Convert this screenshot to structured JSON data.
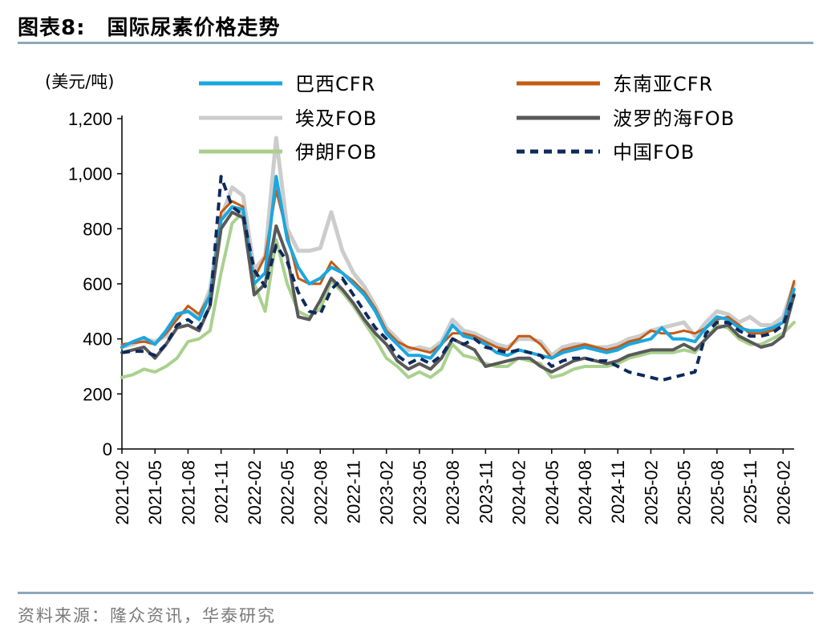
{
  "title": "图表8:　国际尿素价格走势",
  "source": "资料来源：隆众资讯，华泰研究",
  "chart_data": {
    "type": "line",
    "ylabel": "(美元/吨)",
    "ylim": [
      0,
      1200
    ],
    "yticks": [
      0,
      200,
      400,
      600,
      800,
      1000,
      1200
    ],
    "ytick_labels": [
      "0",
      "200",
      "400",
      "600",
      "800",
      "1,000",
      "1,200"
    ],
    "x": [
      "2021-02",
      "2021-03",
      "2021-04",
      "2021-05",
      "2021-06",
      "2021-07",
      "2021-08",
      "2021-09",
      "2021-10",
      "2021-11",
      "2021-12",
      "2022-01",
      "2022-02",
      "2022-03",
      "2022-04",
      "2022-05",
      "2022-06",
      "2022-07",
      "2022-08",
      "2022-09",
      "2022-10",
      "2022-11",
      "2022-12",
      "2023-01",
      "2023-02",
      "2023-03",
      "2023-04",
      "2023-05",
      "2023-06",
      "2023-07",
      "2023-08",
      "2023-09",
      "2023-10",
      "2023-11",
      "2023-12",
      "2024-01",
      "2024-02",
      "2024-03",
      "2024-04",
      "2024-05",
      "2024-06",
      "2024-07",
      "2024-08",
      "2024-09",
      "2024-10",
      "2024-11",
      "2024-12",
      "2025-01",
      "2025-02",
      "2025-03",
      "2025-04",
      "2025-05",
      "2025-06",
      "2025-07",
      "2025-08",
      "2025-09",
      "2025-10",
      "2025-11",
      "2025-12",
      "2026-01",
      "2026-02",
      "2026-03"
    ],
    "xtick_labels": [
      "2021-02",
      "2021-05",
      "2021-08",
      "2021-11",
      "2022-02",
      "2022-05",
      "2022-08",
      "2022-11",
      "2023-02",
      "2023-05",
      "2023-08",
      "2023-11",
      "2024-02",
      "2024-05",
      "2024-08",
      "2024-11",
      "2025-02",
      "2025-05",
      "2025-08",
      "2025-11",
      "2026-02"
    ],
    "grid": false,
    "legend": "top",
    "series": [
      {
        "name": "巴西CFR",
        "color": "#1aa7e0",
        "dash": "",
        "width": 4,
        "values": [
          370,
          390,
          405,
          380,
          430,
          490,
          500,
          470,
          560,
          830,
          880,
          870,
          600,
          640,
          990,
          760,
          660,
          600,
          620,
          660,
          640,
          600,
          560,
          500,
          420,
          380,
          340,
          340,
          330,
          380,
          450,
          410,
          400,
          380,
          350,
          340,
          360,
          350,
          340,
          330,
          350,
          360,
          370,
          360,
          350,
          360,
          380,
          390,
          400,
          440,
          400,
          400,
          390,
          440,
          480,
          470,
          440,
          430,
          430,
          440,
          460,
          580
        ]
      },
      {
        "name": "东南亚CFR",
        "color": "#c55a11",
        "dash": "",
        "width": 3,
        "values": [
          380,
          385,
          390,
          380,
          420,
          470,
          520,
          490,
          560,
          860,
          900,
          880,
          620,
          700,
          940,
          780,
          620,
          600,
          600,
          680,
          640,
          610,
          570,
          510,
          430,
          390,
          370,
          360,
          350,
          380,
          420,
          420,
          410,
          390,
          370,
          360,
          410,
          410,
          380,
          330,
          360,
          370,
          380,
          370,
          360,
          370,
          390,
          400,
          430,
          420,
          420,
          430,
          420,
          440,
          470,
          480,
          450,
          420,
          420,
          430,
          460,
          610
        ]
      },
      {
        "name": "埃及FOB",
        "color": "#cccccc",
        "dash": "",
        "width": 5,
        "values": [
          370,
          380,
          400,
          390,
          410,
          490,
          500,
          480,
          580,
          840,
          950,
          920,
          650,
          700,
          1130,
          800,
          720,
          720,
          730,
          860,
          720,
          640,
          590,
          520,
          440,
          400,
          360,
          370,
          360,
          390,
          470,
          430,
          420,
          400,
          380,
          370,
          400,
          400,
          390,
          340,
          370,
          380,
          380,
          370,
          370,
          380,
          400,
          410,
          430,
          440,
          450,
          460,
          410,
          460,
          500,
          490,
          460,
          480,
          450,
          450,
          480,
          600
        ]
      },
      {
        "name": "波罗的海FOB",
        "color": "#595959",
        "dash": "",
        "width": 4,
        "values": [
          350,
          360,
          370,
          330,
          380,
          440,
          450,
          430,
          520,
          800,
          860,
          840,
          560,
          600,
          810,
          700,
          480,
          470,
          540,
          620,
          580,
          530,
          470,
          420,
          380,
          320,
          290,
          310,
          290,
          330,
          400,
          380,
          360,
          300,
          310,
          320,
          330,
          330,
          300,
          280,
          300,
          320,
          330,
          320,
          310,
          320,
          340,
          350,
          360,
          360,
          360,
          380,
          360,
          400,
          440,
          450,
          410,
          390,
          370,
          380,
          410,
          560
        ]
      },
      {
        "name": "伊朗FOB",
        "color": "#a9d18e",
        "dash": "",
        "width": 4,
        "values": [
          260,
          270,
          290,
          280,
          300,
          330,
          390,
          400,
          430,
          640,
          820,
          860,
          600,
          500,
          760,
          600,
          500,
          480,
          510,
          610,
          570,
          520,
          460,
          400,
          330,
          300,
          260,
          280,
          260,
          290,
          380,
          340,
          330,
          310,
          300,
          300,
          330,
          320,
          310,
          260,
          270,
          290,
          300,
          300,
          300,
          310,
          330,
          340,
          350,
          350,
          350,
          360,
          350,
          400,
          450,
          440,
          400,
          380,
          380,
          400,
          420,
          460
        ]
      },
      {
        "name": "中国FOB",
        "color": "#0d2a5c",
        "dash": "10,7",
        "width": 4,
        "values": [
          350,
          355,
          355,
          340,
          380,
          450,
          470,
          440,
          520,
          990,
          880,
          850,
          650,
          590,
          740,
          680,
          570,
          500,
          490,
          580,
          620,
          560,
          500,
          440,
          400,
          340,
          310,
          330,
          310,
          340,
          400,
          380,
          400,
          370,
          360,
          350,
          360,
          350,
          340,
          300,
          320,
          330,
          330,
          320,
          320,
          300,
          280,
          270,
          260,
          250,
          260,
          270,
          280,
          420,
          460,
          460,
          430,
          410,
          410,
          420,
          450,
          560
        ]
      }
    ]
  }
}
